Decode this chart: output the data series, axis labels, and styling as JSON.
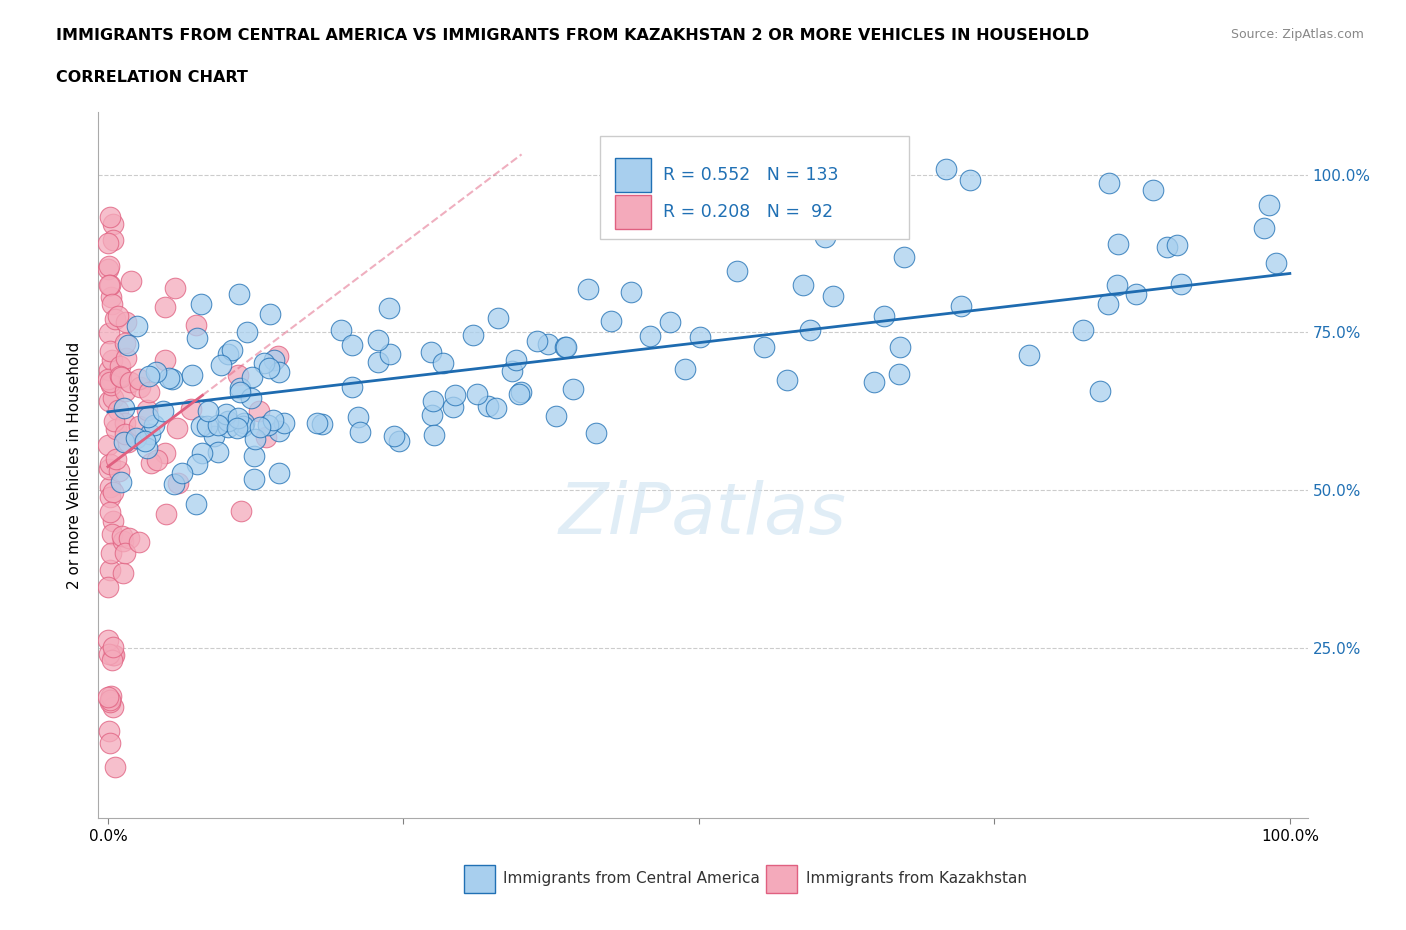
{
  "title_line1": "IMMIGRANTS FROM CENTRAL AMERICA VS IMMIGRANTS FROM KAZAKHSTAN 2 OR MORE VEHICLES IN HOUSEHOLD",
  "title_line2": "CORRELATION CHART",
  "source": "Source: ZipAtlas.com",
  "ylabel": "2 or more Vehicles in Household",
  "legend_label1": "Immigrants from Central America",
  "legend_label2": "Immigrants from Kazakhstan",
  "R1": 0.552,
  "N1": 133,
  "R2": 0.208,
  "N2": 92,
  "color_blue_fill": "#A8CFEE",
  "color_blue_edge": "#2070B4",
  "color_pink_fill": "#F4AABB",
  "color_pink_edge": "#E06080",
  "color_blue_line": "#1E6BB0",
  "color_pink_line": "#E06888",
  "watermark": "ZiPatlas",
  "blue_intercept": 0.595,
  "blue_slope": 0.3,
  "pink_intercept": 0.6,
  "pink_slope": 1.1
}
